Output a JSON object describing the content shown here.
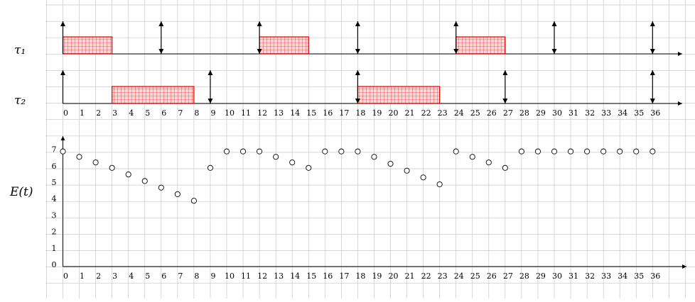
{
  "task_labels": {
    "tau1": "τ₁",
    "tau2": "τ₂",
    "energy": "E(t)"
  },
  "x_ticks": [
    "0",
    "1",
    "2",
    "3",
    "4",
    "5",
    "6",
    "7",
    "8",
    "9",
    "10",
    "11",
    "12",
    "13",
    "14",
    "15",
    "16",
    "17",
    "18",
    "19",
    "20",
    "21",
    "22",
    "23",
    "24",
    "25",
    "26",
    "27",
    "28",
    "29",
    "30",
    "31",
    "32",
    "33",
    "34",
    "35",
    "36"
  ],
  "y_ticks": [
    "0",
    "1",
    "2",
    "3",
    "4",
    "5",
    "6",
    "7"
  ],
  "colors": {
    "grid": "#c8c8c8",
    "execution_fill": "#ffd6d6",
    "execution_stroke": "#e00000",
    "axis": "#000000"
  },
  "tau1": {
    "arrivals": [
      0,
      6,
      12,
      18,
      24,
      30,
      36
    ],
    "executions": [
      [
        0,
        3
      ],
      [
        12,
        15
      ],
      [
        24,
        27
      ]
    ]
  },
  "tau2": {
    "arrivals": [
      0,
      9,
      18,
      27,
      36
    ],
    "executions": [
      [
        3,
        8
      ],
      [
        18,
        23
      ]
    ]
  },
  "chart_data": {
    "type": "scatter",
    "xlim": [
      0,
      36
    ],
    "ylim": [
      0,
      7
    ],
    "x": [
      0,
      1,
      2,
      3,
      4,
      5,
      6,
      7,
      8,
      9,
      10,
      11,
      12,
      13,
      14,
      15,
      16,
      17,
      18,
      19,
      20,
      21,
      22,
      23,
      24,
      25,
      26,
      27,
      28,
      29,
      30,
      31,
      32,
      33,
      34,
      35,
      36
    ],
    "y": [
      7,
      6.67,
      6.33,
      6,
      5.6,
      5.2,
      4.8,
      4.4,
      4,
      6,
      7,
      7,
      7,
      6.67,
      6.33,
      6,
      7,
      7,
      7,
      6.67,
      6.25,
      5.83,
      5.42,
      5,
      7,
      6.67,
      6.33,
      6,
      7,
      7,
      7,
      7,
      7,
      7,
      7,
      7,
      7
    ]
  }
}
